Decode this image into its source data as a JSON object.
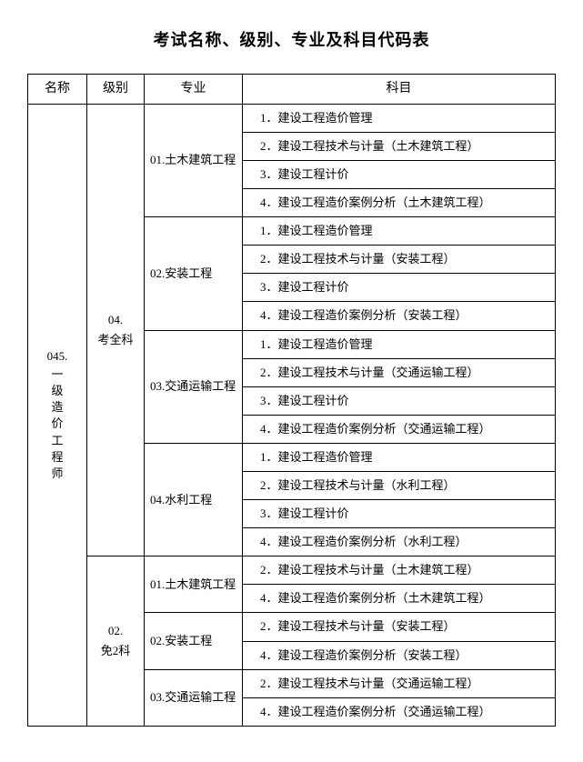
{
  "title": "考试名称、级别、专业及科目代码表",
  "header": {
    "name": "名称",
    "level": "级别",
    "major": "专业",
    "subject": "科目"
  },
  "name_code": "045.",
  "name_text": "一级造价工程师",
  "levels": [
    {
      "label": "04.\n考全科",
      "majors": [
        {
          "label": "01.土木建筑工程",
          "subjects": [
            "　1．建设工程造价管理",
            "　2．建设工程技术与计量（土木建筑工程）",
            "　3．建设工程计价",
            "　4．建设工程造价案例分析（土木建筑工程）"
          ]
        },
        {
          "label": "02.安装工程",
          "subjects": [
            "　1．建设工程造价管理",
            "　2．建设工程技术与计量（安装工程）",
            "　3．建设工程计价",
            "　4．建设工程造价案例分析（安装工程）"
          ]
        },
        {
          "label": "03.交通运输工程",
          "subjects": [
            "　1．建设工程造价管理",
            "　2．建设工程技术与计量（交通运输工程）",
            "　3．建设工程计价",
            "　4．建设工程造价案例分析（交通运输工程）"
          ]
        },
        {
          "label": "04.水利工程",
          "subjects": [
            "　1．建设工程造价管理",
            "　2．建设工程技术与计量（水利工程）",
            "　3．建设工程计价",
            "　4．建设工程造价案例分析（水利工程）"
          ]
        }
      ]
    },
    {
      "label": "02.\n免2科",
      "majors": [
        {
          "label": "01.土木建筑工程",
          "subjects": [
            "　2．建设工程技术与计量（土木建筑工程）",
            "　4．建设工程造价案例分析（土木建筑工程）"
          ]
        },
        {
          "label": "02.安装工程",
          "subjects": [
            "　2．建设工程技术与计量（安装工程）",
            "　4．建设工程造价案例分析（安装工程）"
          ]
        },
        {
          "label": "03.交通运输工程",
          "subjects": [
            "　2．建设工程技术与计量（交通运输工程）",
            "　4．建设工程造价案例分析（交通运输工程）"
          ]
        }
      ]
    }
  ]
}
